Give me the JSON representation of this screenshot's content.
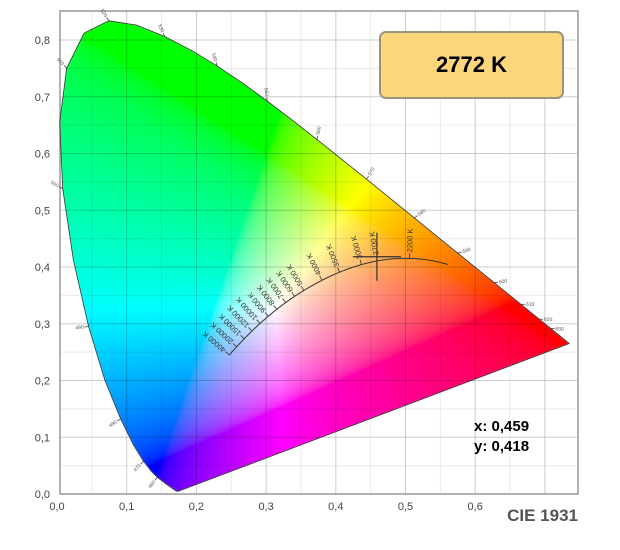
{
  "badge": {
    "cct_label": "2772 K"
  },
  "readout": {
    "x_label": "x: 0,459",
    "y_label": "y: 0,418"
  },
  "diagram_label": "CIE 1931",
  "chart_data": {
    "type": "scatter",
    "xlim": [
      0,
      0.75
    ],
    "ylim": [
      0,
      0.85
    ],
    "grid": true,
    "x_ticks": [
      0,
      0.1,
      0.2,
      0.3,
      0.4,
      0.5,
      0.6
    ],
    "x_tick_labels": [
      "0,0",
      "0,1",
      "0,2",
      "0,3",
      "0,4",
      "0,5",
      "0,6"
    ],
    "y_ticks": [
      0,
      0.1,
      0.2,
      0.3,
      0.4,
      0.5,
      0.6,
      0.7,
      0.8
    ],
    "y_tick_labels": [
      "0,0",
      "0,1",
      "0,2",
      "0,3",
      "0,4",
      "0,5",
      "0,6",
      "0,7",
      "0,8"
    ],
    "spectral_locus": [
      [
        380,
        0.1741,
        0.005
      ],
      [
        400,
        0.1733,
        0.0048
      ],
      [
        420,
        0.1714,
        0.0051
      ],
      [
        430,
        0.1689,
        0.0069
      ],
      [
        440,
        0.1644,
        0.0109
      ],
      [
        450,
        0.1566,
        0.0177
      ],
      [
        460,
        0.144,
        0.0297
      ],
      [
        465,
        0.1355,
        0.0399
      ],
      [
        470,
        0.1241,
        0.0578
      ],
      [
        475,
        0.1096,
        0.0868
      ],
      [
        480,
        0.0913,
        0.1327
      ],
      [
        485,
        0.0687,
        0.2007
      ],
      [
        490,
        0.0454,
        0.295
      ],
      [
        495,
        0.0235,
        0.4127
      ],
      [
        500,
        0.0082,
        0.5384
      ],
      [
        505,
        0.0039,
        0.6548
      ],
      [
        510,
        0.0139,
        0.7502
      ],
      [
        515,
        0.0389,
        0.812
      ],
      [
        520,
        0.0743,
        0.8338
      ],
      [
        525,
        0.1142,
        0.8262
      ],
      [
        530,
        0.1547,
        0.8059
      ],
      [
        535,
        0.1929,
        0.7816
      ],
      [
        540,
        0.2296,
        0.7543
      ],
      [
        545,
        0.2658,
        0.7243
      ],
      [
        550,
        0.3016,
        0.6923
      ],
      [
        555,
        0.3373,
        0.6589
      ],
      [
        560,
        0.3731,
        0.6245
      ],
      [
        565,
        0.4087,
        0.5896
      ],
      [
        570,
        0.4441,
        0.5547
      ],
      [
        575,
        0.4788,
        0.5202
      ],
      [
        580,
        0.5125,
        0.4866
      ],
      [
        585,
        0.5448,
        0.4544
      ],
      [
        590,
        0.5752,
        0.4242
      ],
      [
        595,
        0.6029,
        0.3965
      ],
      [
        600,
        0.627,
        0.3725
      ],
      [
        605,
        0.6482,
        0.3514
      ],
      [
        610,
        0.6658,
        0.334
      ],
      [
        620,
        0.6915,
        0.3083
      ],
      [
        630,
        0.7079,
        0.292
      ],
      [
        640,
        0.719,
        0.2809
      ],
      [
        700,
        0.7347,
        0.2653
      ]
    ],
    "wavelength_labels": [
      460,
      470,
      480,
      490,
      500,
      510,
      520,
      530,
      540,
      550,
      560,
      570,
      580,
      590,
      600,
      610,
      620,
      630
    ],
    "planckian_locus_labels": [
      {
        "T": 40000,
        "label": "40000 K"
      },
      {
        "T": 20000,
        "label": "20000 K"
      },
      {
        "T": 15000,
        "label": "15000 K"
      },
      {
        "T": 12000,
        "label": "12000 K"
      },
      {
        "T": 10000,
        "label": "10000 K"
      },
      {
        "T": 9000,
        "label": "9000 K"
      },
      {
        "T": 8000,
        "label": "8000 K"
      },
      {
        "T": 7000,
        "label": "7000 K"
      },
      {
        "T": 6000,
        "label": "6000 K"
      },
      {
        "T": 5000,
        "label": "5000 K"
      },
      {
        "T": 4000,
        "label": "4000 K"
      },
      {
        "T": 3500,
        "label": "3500 K"
      },
      {
        "T": 3000,
        "label": "3000 K"
      },
      {
        "T": 2700,
        "label": "2700 K"
      },
      {
        "T": 2200,
        "label": "2200 K"
      }
    ],
    "point": {
      "x": 0.459,
      "y": 0.418,
      "cct_K": 2772
    }
  }
}
